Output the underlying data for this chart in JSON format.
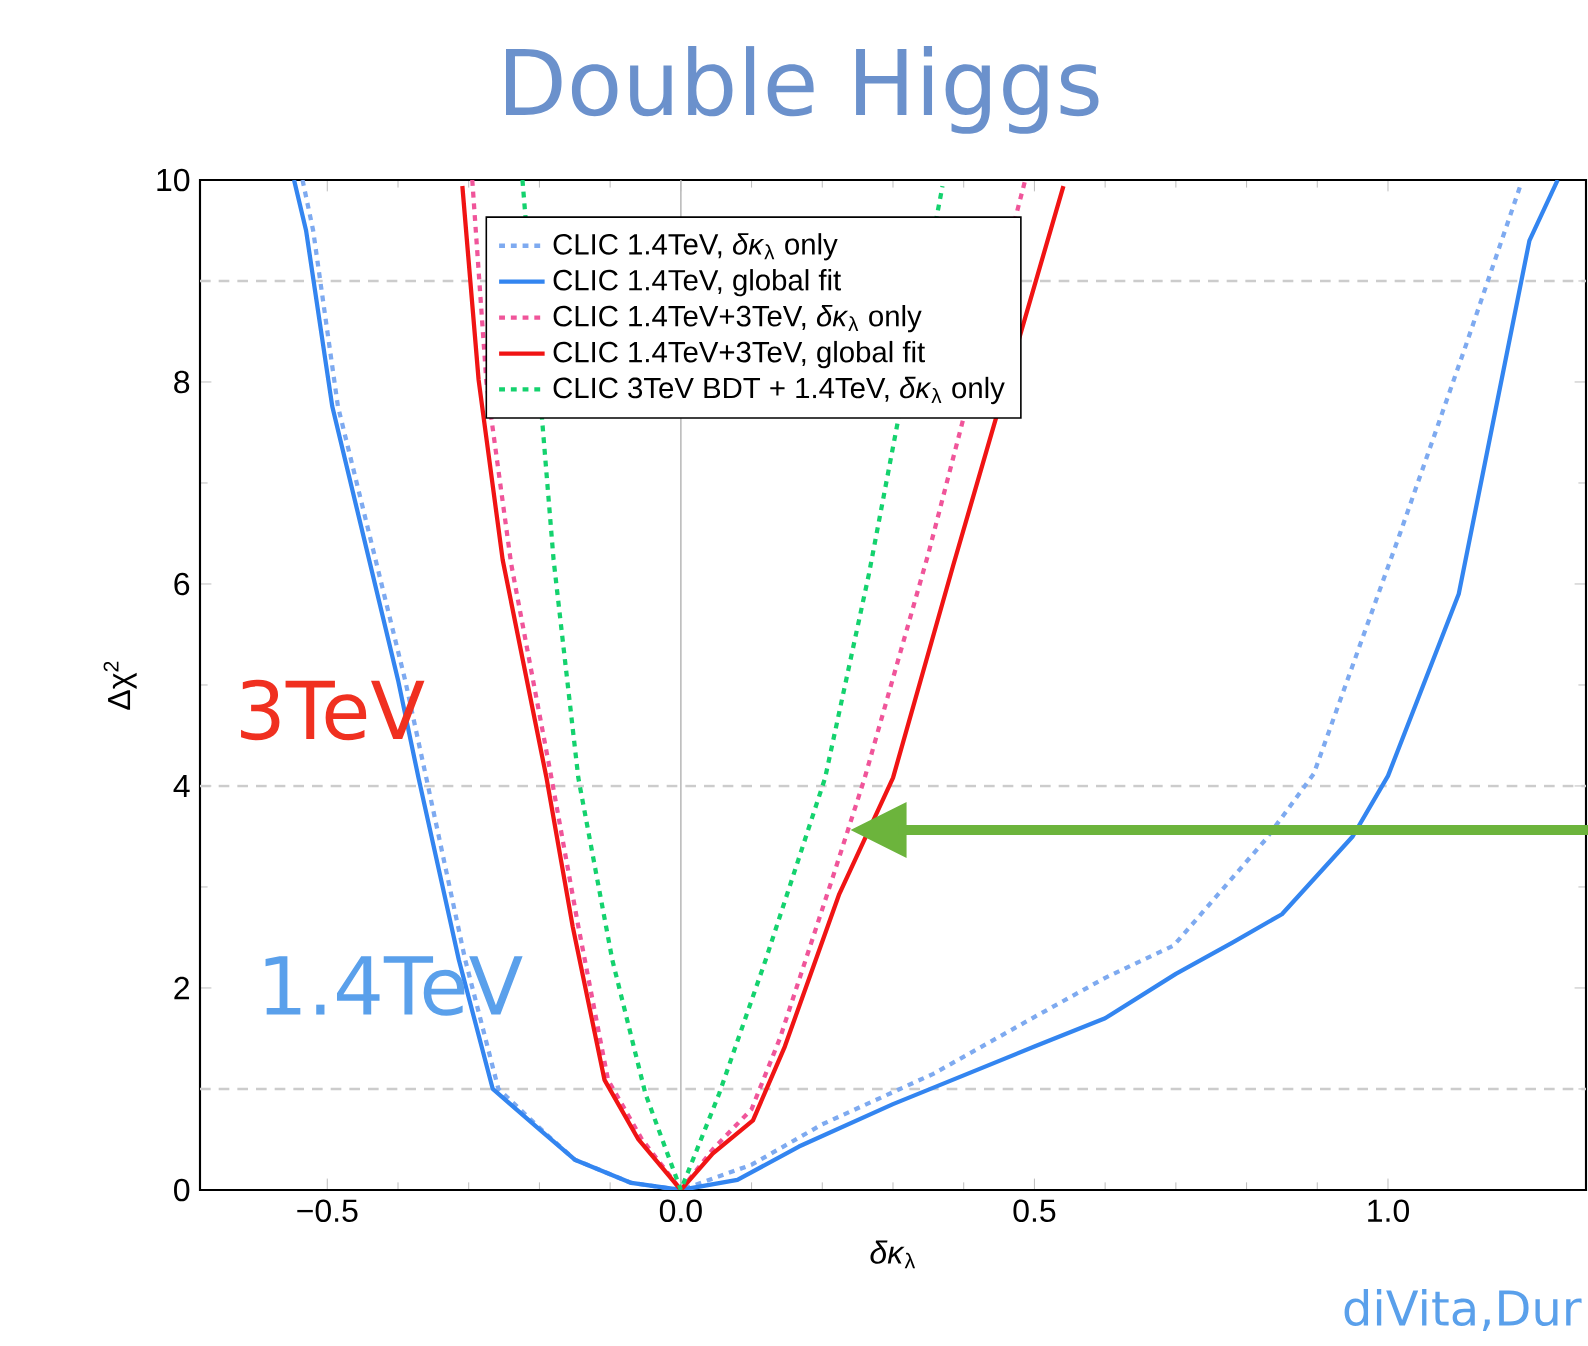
{
  "chart_data": {
    "type": "line",
    "title": "Double Higgs",
    "xlabel": "*δκ*$_{λ}$",
    "ylabel": "Δχ$^{2}$",
    "xlim": [
      -0.68,
      1.28
    ],
    "ylim": [
      0,
      10
    ],
    "xticks": [
      {
        "value": -0.5,
        "label": "−0.5"
      },
      {
        "value": 0,
        "label": "0.0"
      },
      {
        "value": 0.5,
        "label": "0.5"
      },
      {
        "value": 1,
        "label": "1.0"
      }
    ],
    "yticks": [
      0,
      2,
      4,
      6,
      8,
      10
    ],
    "legend": "top",
    "marker": "none",
    "grid": false,
    "annotations": [
      "3TeV",
      "1.4TeV",
      "diVita,Dur"
    ],
    "ref_lines": [
      {
        "axis": "y",
        "value": 1,
        "color": "#cccccc",
        "line_style": "dashed"
      },
      {
        "axis": "y",
        "value": 4,
        "color": "#cccccc",
        "line_style": "dashed"
      },
      {
        "axis": "y",
        "value": 9,
        "color": "#cccccc",
        "line_style": "dashed"
      },
      {
        "axis": "x",
        "value": 0,
        "color": "#bbbbbb",
        "line_style": "solid"
      }
    ],
    "series": [
      {
        "name": "CLIC 1.4TeV, *δκ*$_{λ}$ only",
        "color": "#7eaaf0",
        "line_style": "dotted",
        "x": [
          -0.535,
          -0.52,
          -0.485,
          -0.39,
          -0.36,
          -0.305,
          -0.258,
          -0.19,
          -0.15,
          -0.07,
          0,
          0.1,
          0.2,
          0.357,
          0.507,
          0.6,
          0.697,
          0.827,
          0.895,
          1.017,
          1.11,
          1.187
        ],
        "values": [
          10,
          9.5,
          7.76,
          5.05,
          4.08,
          2.28,
          1,
          0.55,
          0.3,
          0.07,
          0,
          0.25,
          0.65,
          1.15,
          1.74,
          2.1,
          2.42,
          3.47,
          4.12,
          6.5,
          8.36,
          9.94
        ]
      },
      {
        "name": "CLIC 1.4TeV, global fit",
        "color": "#3385f0",
        "line_style": "solid",
        "x": [
          -0.547,
          -0.53,
          -0.493,
          -0.4,
          -0.371,
          -0.314,
          -0.266,
          -0.2,
          -0.15,
          -0.07,
          0,
          0.08,
          0.167,
          0.3,
          0.5,
          0.6,
          0.7,
          0.78,
          0.85,
          0.95,
          1.0,
          1.05,
          1.1,
          1.2,
          1.24
        ],
        "values": [
          10,
          9.5,
          7.76,
          5.05,
          4.08,
          2.28,
          1,
          0.6,
          0.3,
          0.07,
          0,
          0.1,
          0.43,
          0.85,
          1.42,
          1.7,
          2.14,
          2.45,
          2.73,
          3.5,
          4.1,
          5.0,
          5.9,
          9.4,
          10
        ]
      },
      {
        "name": "CLIC 1.4TeV+3TeV, *δκ*$_{λ}$ only",
        "color": "#f0559a",
        "line_style": "dotted",
        "x": [
          -0.295,
          -0.275,
          -0.24,
          -0.183,
          -0.145,
          -0.103,
          -0.055,
          0,
          0.045,
          0.1,
          0.14,
          0.215,
          0.26,
          0.35,
          0.487
        ],
        "values": [
          10,
          8,
          6.2,
          4.08,
          2.61,
          1.09,
          0.5,
          0,
          0.4,
          0.8,
          1.5,
          3.1,
          4.08,
          6.3,
          10
        ]
      },
      {
        "name": "CLIC 1.4TeV+3TeV, global fit",
        "color": "#f01414",
        "line_style": "solid",
        "x": [
          -0.309,
          -0.286,
          -0.252,
          -0.19,
          -0.153,
          -0.108,
          -0.06,
          0,
          0.045,
          0.102,
          0.147,
          0.224,
          0.3,
          0.385,
          0.541
        ],
        "values": [
          9.94,
          8.02,
          6.24,
          4.08,
          2.61,
          1.09,
          0.5,
          0,
          0.36,
          0.69,
          1.42,
          2.93,
          4.08,
          6.18,
          9.94
        ]
      },
      {
        "name": "CLIC 3TeV BDT + 1.4TeV, *δκ*$_{λ}$ only",
        "color": "#14d26e",
        "line_style": "dotted",
        "x": [
          -0.224,
          -0.18,
          -0.145,
          -0.097,
          -0.05,
          0,
          0.054,
          0.12,
          0.204,
          0.266,
          0.37
        ],
        "values": [
          10,
          6.24,
          4.08,
          2.28,
          0.95,
          0,
          0.95,
          2.28,
          4.08,
          6.1,
          9.94
        ]
      }
    ]
  }
}
